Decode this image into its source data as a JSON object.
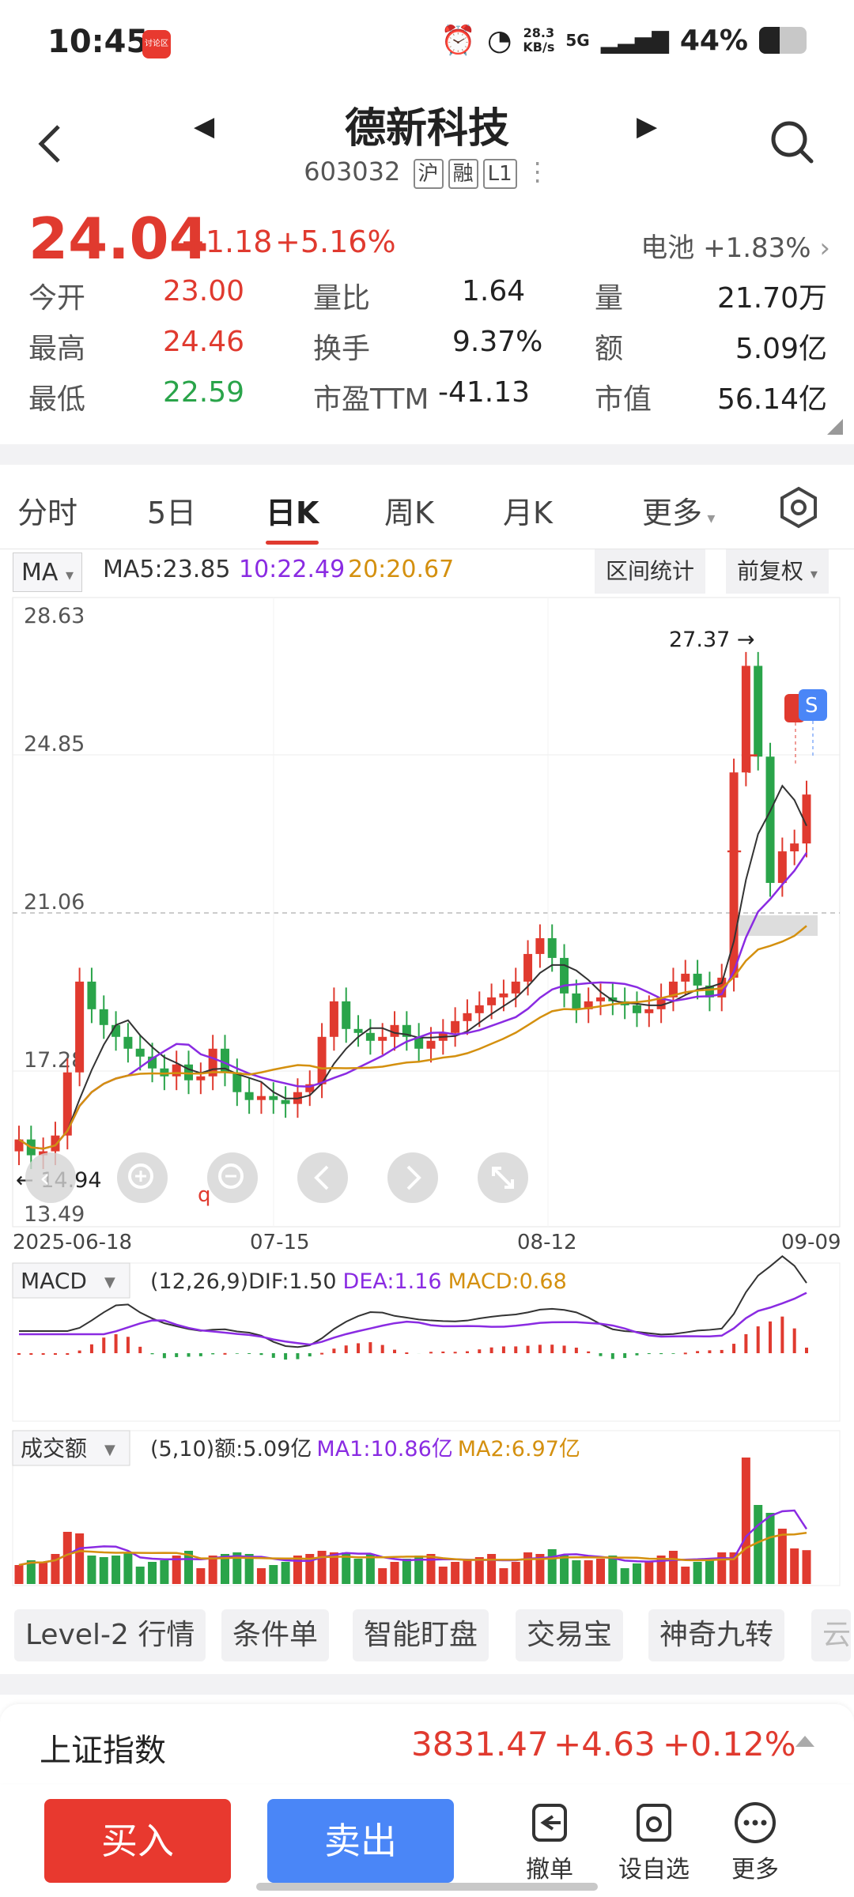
{
  "status_bar": {
    "time": "10:45",
    "app_icon_label": "讨论区",
    "net_speed_value": "28.3",
    "net_speed_unit": "KB/s",
    "signal": "5G",
    "battery": "44%",
    "battery_level": 0.44
  },
  "header": {
    "name": "德新科技",
    "code": "603032",
    "tags": [
      "沪",
      "融",
      "L1"
    ]
  },
  "quote": {
    "price": "24.04",
    "change": "+1.18",
    "change_pct": "+5.16%",
    "sector_name": "电池",
    "sector_pct": "+1.83%",
    "rows": [
      [
        {
          "label": "今开",
          "value": "23.00",
          "color": "red"
        },
        {
          "label": "量比",
          "value": "1.64"
        },
        {
          "label": "量",
          "value": "21.70万"
        }
      ],
      [
        {
          "label": "最高",
          "value": "24.46",
          "color": "red"
        },
        {
          "label": "换手",
          "value": "9.37%"
        },
        {
          "label": "额",
          "value": "5.09亿"
        }
      ],
      [
        {
          "label": "最低",
          "value": "22.59",
          "color": "green"
        },
        {
          "label": "市盈TTM",
          "value": "-41.13"
        },
        {
          "label": "市值",
          "value": "56.14亿"
        }
      ]
    ]
  },
  "tabs": [
    "分时",
    "5日",
    "日K",
    "周K",
    "月K",
    "更多"
  ],
  "active_tab": "日K",
  "ma_bar": {
    "selector": "MA",
    "ma5": "MA5:23.85",
    "ma10": "10:22.49",
    "ma20": "20:20.67",
    "range_stats": "区间统计",
    "adjust": "前复权"
  },
  "kline": {
    "y_labels": [
      "28.63",
      "24.85",
      "21.06",
      "17.28",
      "13.49"
    ],
    "high_annotation": "27.37",
    "low_annotation": "14.94",
    "dates": [
      "2025-06-18",
      "07-15",
      "08-12",
      "09-09"
    ],
    "markers": [
      "T",
      "T",
      "S"
    ]
  },
  "macd": {
    "selector": "MACD",
    "params": "(12,26,9)",
    "dif": "DIF:1.50",
    "dea": "DEA:1.16",
    "macd": "MACD:0.68"
  },
  "volume": {
    "selector": "成交额",
    "params": "(5,10)",
    "amount": "额:5.09亿",
    "ma1": "MA1:10.86亿",
    "ma2": "MA2:6.97亿"
  },
  "chips": [
    "Level-2 行情",
    "条件单",
    "智能盯盘",
    "交易宝",
    "神奇九转",
    "云"
  ],
  "index": {
    "name": "上证指数",
    "value": "3831.47",
    "change": "+4.63",
    "change_pct": "+0.12%"
  },
  "actions": {
    "buy": "买入",
    "sell": "卖出",
    "cancel": "撤单",
    "watchlist": "设自选",
    "more": "更多"
  },
  "colors": {
    "up": "#e03a2f",
    "down": "#2aa44a",
    "ma5": "#333333",
    "ma10": "#8a2be2",
    "ma20": "#d4900f",
    "sell_button": "#4a86f7"
  }
}
